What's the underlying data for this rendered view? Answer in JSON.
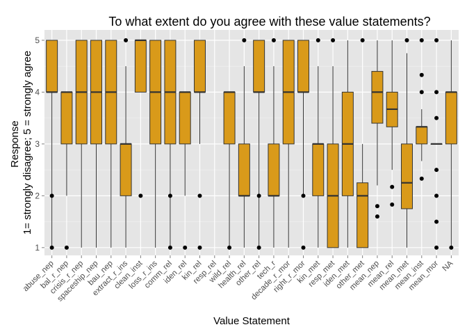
{
  "chart_data": {
    "type": "boxplot",
    "title": "To what extent do you agree with these value statements?",
    "xlabel": "Value Statement",
    "ylabel_lines": [
      "Response",
      "1= strongly disagree; 5 = strongly agree"
    ],
    "ylim": [
      0.85,
      5.2
    ],
    "yticks": [
      1,
      2,
      3,
      4,
      5
    ],
    "grid": true,
    "colors": {
      "panel": "#e5e5e5",
      "grid": "#ffffff",
      "box_fill": "#d99a1a",
      "box_stroke": "#333333",
      "outlier": "#000000"
    },
    "categories": [
      "abuse_nep",
      "bal_r_nep",
      "crisis_r_nep",
      "spaceship_nep",
      "bau_nep",
      "extract_r_ins",
      "clean_inst",
      "loss_r_ins",
      "comm_rel",
      "iden_rel",
      "kin_rel",
      "resp_rel",
      "wild_rel",
      "health_rel",
      "other_rel",
      "tech_r",
      "decade_r_mor",
      "right_r_mor",
      "kin_met",
      "resp_met",
      "iden_met",
      "other_met",
      "mean_nep",
      "mean_rel",
      "mean_met",
      "mean_inst",
      "mean_mor",
      "NA"
    ],
    "boxes": [
      {
        "min": 1,
        "q1": 4,
        "median": 4,
        "q3": 5,
        "max": 5,
        "outliers": [
          1,
          2
        ]
      },
      {
        "min": 2,
        "q1": 3,
        "median": 4,
        "q3": 4,
        "max": 4,
        "outliers": [
          1
        ]
      },
      {
        "min": 1,
        "q1": 3,
        "median": 4,
        "q3": 5,
        "max": 5,
        "outliers": []
      },
      {
        "min": 1,
        "q1": 3,
        "median": 4,
        "q3": 5,
        "max": 5,
        "outliers": []
      },
      {
        "min": 1,
        "q1": 3,
        "median": 4,
        "q3": 5,
        "max": 5,
        "outliers": []
      },
      {
        "min": 1,
        "q1": 2,
        "median": 3,
        "q3": 3,
        "max": 4.5,
        "outliers": [
          5
        ]
      },
      {
        "min": 4,
        "q1": 4,
        "median": 5,
        "q3": 5,
        "max": 5,
        "outliers": [
          2
        ]
      },
      {
        "min": 1,
        "q1": 3,
        "median": 4,
        "q3": 5,
        "max": 5,
        "outliers": []
      },
      {
        "min": 1,
        "q1": 3,
        "median": 4,
        "q3": 5,
        "max": 5,
        "outliers": [
          1,
          2
        ]
      },
      {
        "min": 2,
        "q1": 3,
        "median": 4,
        "q3": 4,
        "max": 4,
        "outliers": [
          1
        ]
      },
      {
        "min": 3,
        "q1": 4,
        "median": 4,
        "q3": 5,
        "max": 5,
        "outliers": [
          1,
          2
        ]
      },
      null,
      {
        "min": 1,
        "q1": 3,
        "median": 4,
        "q3": 4,
        "max": 4,
        "outliers": [
          1
        ]
      },
      {
        "min": 1,
        "q1": 2,
        "median": 2,
        "q3": 3,
        "max": 4.5,
        "outliers": [
          5
        ]
      },
      {
        "min": 1,
        "q1": 4,
        "median": 4,
        "q3": 5,
        "max": 5,
        "outliers": [
          1,
          2
        ]
      },
      {
        "min": 1,
        "q1": 2,
        "median": 2,
        "q3": 3,
        "max": 4.5,
        "outliers": [
          5
        ]
      },
      {
        "min": 1,
        "q1": 3,
        "median": 4,
        "q3": 5,
        "max": 5,
        "outliers": []
      },
      {
        "min": 2,
        "q1": 4,
        "median": 4,
        "q3": 5,
        "max": 5,
        "outliers": [
          1,
          2
        ]
      },
      {
        "min": 1,
        "q1": 2,
        "median": 3,
        "q3": 3,
        "max": 4.5,
        "outliers": [
          5
        ]
      },
      {
        "min": 1,
        "q1": 1,
        "median": 2,
        "q3": 3,
        "max": 4.5,
        "outliers": [
          5
        ]
      },
      {
        "min": 1,
        "q1": 2,
        "median": 3,
        "q3": 4,
        "max": 5,
        "outliers": []
      },
      {
        "min": 1,
        "q1": 1,
        "median": 2,
        "q3": 2.25,
        "max": 3,
        "outliers": [
          5
        ]
      },
      {
        "min": 2.2,
        "q1": 3.4,
        "median": 4,
        "q3": 4.4,
        "max": 5,
        "outliers": [
          1.6,
          1.8
        ]
      },
      {
        "min": 2.5,
        "q1": 3.33,
        "median": 3.67,
        "q3": 4,
        "max": 5,
        "outliers": [
          1.83,
          2.17
        ]
      },
      {
        "min": 1,
        "q1": 1.75,
        "median": 2.25,
        "q3": 3,
        "max": 4.75,
        "outliers": [
          5
        ]
      },
      {
        "min": 2.67,
        "q1": 3,
        "median": 3.33,
        "q3": 3.33,
        "max": 3.67,
        "outliers": [
          2.33,
          4,
          4.33,
          5
        ]
      },
      {
        "min": 3,
        "q1": 3,
        "median": 3,
        "q3": 3,
        "max": 3,
        "outliers": [
          1,
          1.5,
          2,
          2.5,
          3.5,
          4,
          5
        ]
      },
      {
        "min": 1,
        "q1": 3,
        "median": 4,
        "q3": 4,
        "max": 5,
        "outliers": [
          1
        ]
      }
    ]
  }
}
